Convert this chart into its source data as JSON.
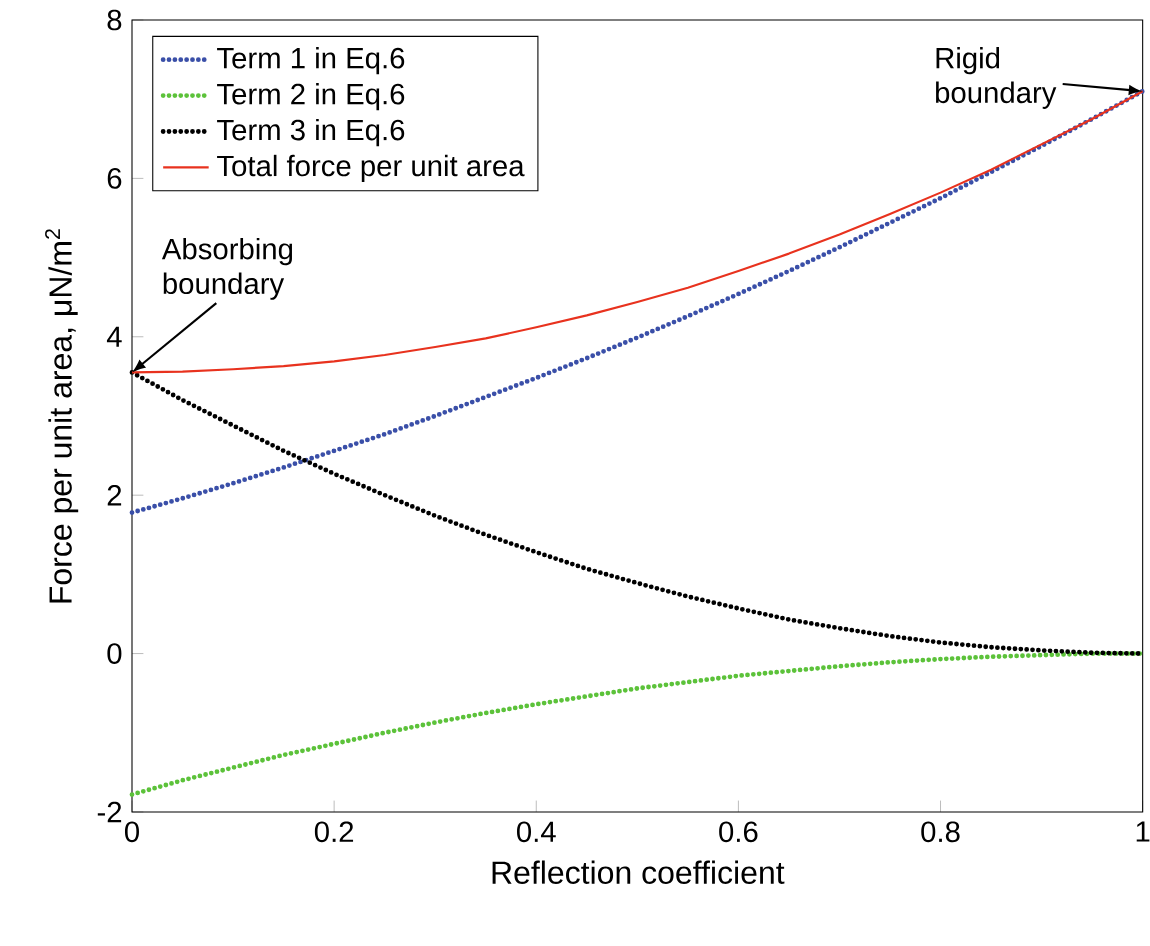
{
  "chart_data": {
    "type": "line",
    "xlabel": "Reflection coefficient",
    "ylabel": "Force per unit area, μN/m$^{2}$",
    "x": [
      0,
      0.05,
      0.1,
      0.15,
      0.2,
      0.25,
      0.3,
      0.35,
      0.4,
      0.45,
      0.5,
      0.55,
      0.6,
      0.65,
      0.7,
      0.75,
      0.8,
      0.85,
      0.9,
      0.95,
      1
    ],
    "series": [
      {
        "name": "Term 1 in Eq.6",
        "color": "#3a4fa8",
        "line_style": "dotted",
        "values": [
          1.78,
          1.96,
          2.15,
          2.35,
          2.56,
          2.77,
          3.0,
          3.24,
          3.48,
          3.73,
          3.99,
          4.26,
          4.54,
          4.83,
          5.13,
          5.44,
          5.75,
          6.08,
          6.41,
          6.75,
          7.1
        ]
      },
      {
        "name": "Term 2 in Eq.6",
        "color": "#5cc23a",
        "line_style": "dotted",
        "values": [
          -1.78,
          -1.6,
          -1.44,
          -1.28,
          -1.14,
          -1.0,
          -0.87,
          -0.75,
          -0.64,
          -0.54,
          -0.44,
          -0.36,
          -0.28,
          -0.22,
          -0.16,
          -0.11,
          -0.07,
          -0.04,
          -0.02,
          0.0,
          0.0
        ]
      },
      {
        "name": "Term 3 in Eq.6",
        "color": "#000000",
        "line_style": "dotted",
        "values": [
          3.55,
          3.2,
          2.88,
          2.56,
          2.27,
          2.0,
          1.74,
          1.5,
          1.28,
          1.07,
          0.89,
          0.72,
          0.57,
          0.43,
          0.32,
          0.22,
          0.14,
          0.08,
          0.04,
          0.01,
          0.0
        ]
      },
      {
        "name": "Total force per unit area",
        "color": "#e8321e",
        "line_style": "solid",
        "values": [
          3.55,
          3.56,
          3.59,
          3.63,
          3.69,
          3.77,
          3.87,
          3.98,
          4.12,
          4.27,
          4.44,
          4.62,
          4.83,
          5.05,
          5.29,
          5.55,
          5.82,
          6.11,
          6.43,
          6.75,
          7.1
        ]
      }
    ],
    "xlim": [
      0,
      1
    ],
    "ylim": [
      -2,
      8
    ],
    "xticks": [
      0,
      0.2,
      0.4,
      0.6,
      0.8,
      1
    ],
    "yticks": [
      {
        "value": -2,
        "label": "-2"
      },
      0,
      2,
      4,
      6,
      8
    ],
    "legend": "top left",
    "grid": false,
    "annotations": [
      {
        "text": "Absorbing boundary",
        "x": 0,
        "y": 3.55
      },
      {
        "text": "Rigid boundary",
        "x": 1,
        "y": 7.1
      }
    ]
  }
}
